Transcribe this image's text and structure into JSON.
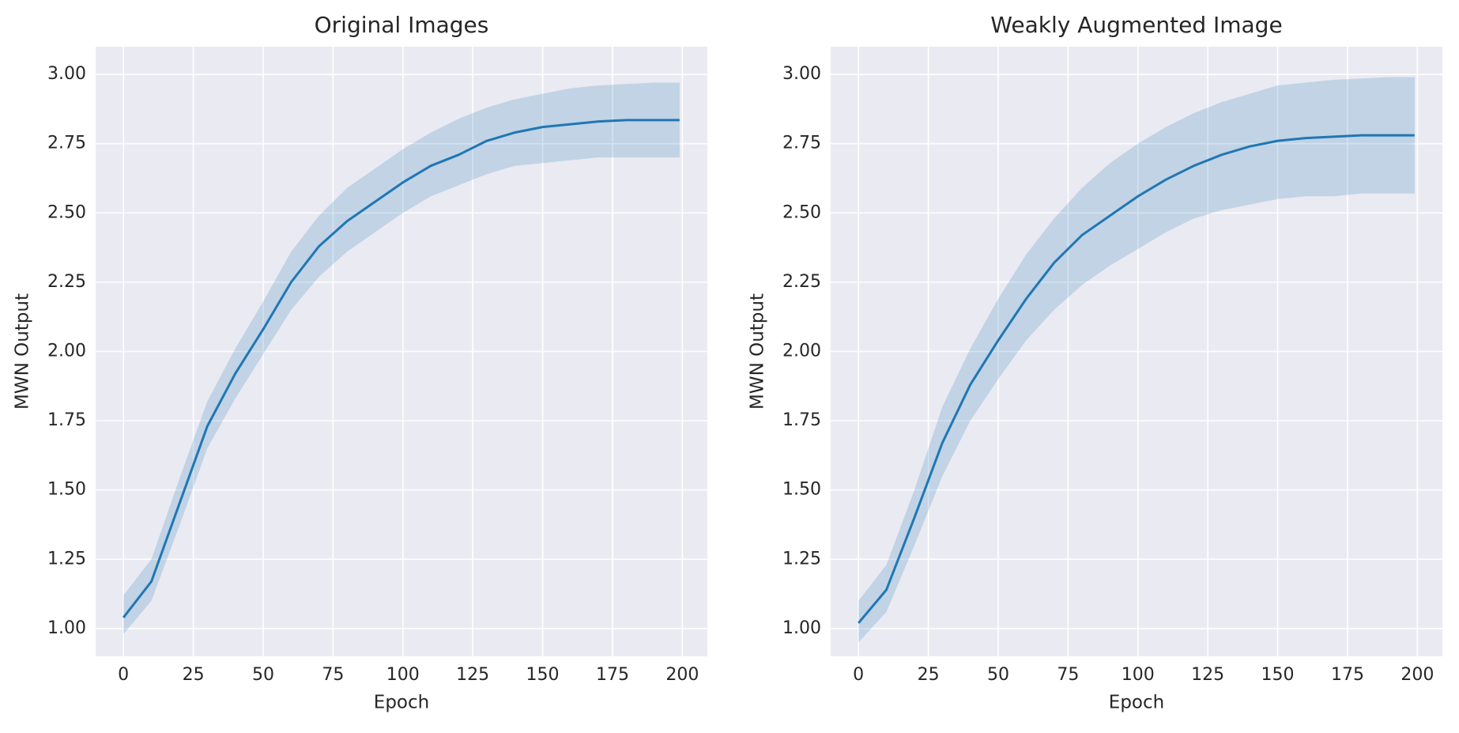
{
  "chart_data": [
    {
      "type": "line",
      "title": "Original Images",
      "xlabel": "Epoch",
      "ylabel": "MWN Output",
      "x": [
        0,
        10,
        20,
        30,
        40,
        50,
        60,
        70,
        80,
        90,
        100,
        110,
        120,
        130,
        140,
        150,
        160,
        170,
        180,
        190,
        199
      ],
      "values": [
        1.04,
        1.17,
        1.45,
        1.73,
        1.92,
        2.08,
        2.25,
        2.38,
        2.47,
        2.54,
        2.61,
        2.67,
        2.71,
        2.76,
        2.79,
        2.81,
        2.82,
        2.83,
        2.835,
        2.835,
        2.835
      ],
      "lower": [
        0.98,
        1.1,
        1.37,
        1.65,
        1.83,
        1.99,
        2.15,
        2.27,
        2.36,
        2.43,
        2.5,
        2.56,
        2.6,
        2.64,
        2.67,
        2.68,
        2.69,
        2.7,
        2.7,
        2.7,
        2.7
      ],
      "upper": [
        1.12,
        1.25,
        1.54,
        1.82,
        2.01,
        2.18,
        2.36,
        2.49,
        2.59,
        2.66,
        2.73,
        2.79,
        2.84,
        2.88,
        2.91,
        2.93,
        2.95,
        2.96,
        2.965,
        2.97,
        2.97
      ],
      "color": "#1f77b4",
      "grid": true,
      "xlim": [
        -9.95,
        208.95
      ],
      "xticks": [
        0,
        25,
        50,
        75,
        100,
        125,
        150,
        175,
        200
      ],
      "ylim": [
        0.9,
        3.1
      ],
      "yticks": [
        {
          "value": 1,
          "label": "1.00"
        },
        {
          "value": 1.25,
          "label": "1.25"
        },
        {
          "value": 1.5,
          "label": "1.50"
        },
        {
          "value": 1.75,
          "label": "1.75"
        },
        {
          "value": 2,
          "label": "2.00"
        },
        {
          "value": 2.25,
          "label": "2.25"
        },
        {
          "value": 2.5,
          "label": "2.50"
        },
        {
          "value": 2.75,
          "label": "2.75"
        },
        {
          "value": 3,
          "label": "3.00"
        }
      ]
    },
    {
      "type": "line",
      "title": "Weakly Augmented Image",
      "xlabel": "Epoch",
      "ylabel": "MWN Output",
      "x": [
        0,
        10,
        20,
        30,
        40,
        50,
        60,
        70,
        80,
        90,
        100,
        110,
        120,
        130,
        140,
        150,
        160,
        170,
        180,
        190,
        199
      ],
      "values": [
        1.02,
        1.14,
        1.4,
        1.67,
        1.88,
        2.04,
        2.19,
        2.32,
        2.42,
        2.49,
        2.56,
        2.62,
        2.67,
        2.71,
        2.74,
        2.76,
        2.77,
        2.775,
        2.78,
        2.78,
        2.78
      ],
      "lower": [
        0.95,
        1.06,
        1.3,
        1.55,
        1.75,
        1.9,
        2.04,
        2.15,
        2.24,
        2.31,
        2.37,
        2.43,
        2.48,
        2.51,
        2.53,
        2.55,
        2.56,
        2.56,
        2.57,
        2.57,
        2.57
      ],
      "upper": [
        1.1,
        1.23,
        1.5,
        1.8,
        2.01,
        2.19,
        2.35,
        2.48,
        2.59,
        2.68,
        2.75,
        2.81,
        2.86,
        2.9,
        2.93,
        2.96,
        2.97,
        2.98,
        2.985,
        2.99,
        2.99
      ],
      "color": "#1f77b4",
      "grid": true,
      "xlim": [
        -9.95,
        208.95
      ],
      "xticks": [
        0,
        25,
        50,
        75,
        100,
        125,
        150,
        175,
        200
      ],
      "ylim": [
        0.9,
        3.1
      ],
      "yticks": [
        {
          "value": 1,
          "label": "1.00"
        },
        {
          "value": 1.25,
          "label": "1.25"
        },
        {
          "value": 1.5,
          "label": "1.50"
        },
        {
          "value": 1.75,
          "label": "1.75"
        },
        {
          "value": 2,
          "label": "2.00"
        },
        {
          "value": 2.25,
          "label": "2.25"
        },
        {
          "value": 2.5,
          "label": "2.50"
        },
        {
          "value": 2.75,
          "label": "2.75"
        },
        {
          "value": 3,
          "label": "3.00"
        }
      ]
    }
  ]
}
